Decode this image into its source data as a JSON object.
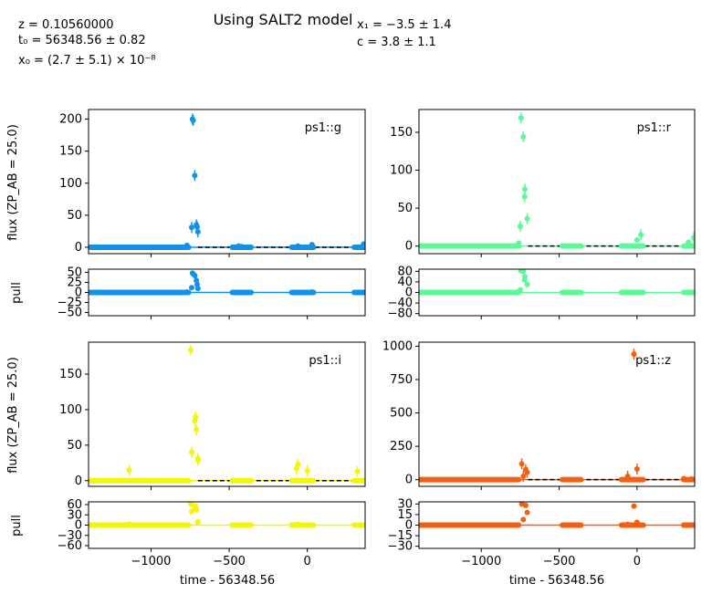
{
  "header": {
    "title": "Using SALT2 model",
    "params": {
      "z": "z = 0.10560000",
      "t0": "t₀ = 56348.56 ± 0.82",
      "x0": "x₀ = (2.7 ± 5.1) × 10⁻⁸",
      "x1": "x₁ = −3.5 ± 1.4",
      "c": "c = 3.8 ± 1.1"
    }
  },
  "labels": {
    "flux_label": "flux (ZP_AB = 25.0)",
    "pull_label": "pull",
    "time_label": "time - 56348.56"
  },
  "chart_data": [
    {
      "type": "scatter",
      "band": "ps1::g",
      "color": "#1192e8",
      "xlim": [
        -1400,
        370
      ],
      "xticks": [
        -1000,
        -500,
        0
      ],
      "ylim": [
        -10,
        215
      ],
      "yticks": [
        0,
        50,
        100,
        150,
        200
      ],
      "pull_ylim": [
        -58,
        58
      ],
      "pull_yticks": [
        50,
        25,
        0,
        -25,
        -50
      ],
      "model_x": [
        -1400,
        -720,
        370
      ],
      "model_y": [
        0,
        0,
        0
      ],
      "baseline_x": [
        [
          -1390,
          -760
        ],
        [
          -480,
          -360
        ],
        [
          -100,
          40
        ],
        [
          300,
          370
        ]
      ],
      "points": [
        {
          "x": -735,
          "y": 200,
          "pull": 48
        },
        {
          "x": -730,
          "y": 198,
          "pull": 46
        },
        {
          "x": -720,
          "y": 112,
          "pull": 42
        },
        {
          "x": -740,
          "y": 31,
          "pull": 12
        },
        {
          "x": -710,
          "y": 35,
          "pull": 30
        },
        {
          "x": -705,
          "y": 32,
          "pull": 20
        },
        {
          "x": -700,
          "y": 24,
          "pull": 10
        },
        {
          "x": -770,
          "y": 3,
          "pull": 1
        },
        {
          "x": -440,
          "y": 2,
          "pull": 0
        },
        {
          "x": -420,
          "y": 1,
          "pull": 0
        },
        {
          "x": -380,
          "y": 0,
          "pull": 0
        },
        {
          "x": -60,
          "y": 2,
          "pull": 0
        },
        {
          "x": 30,
          "y": 4,
          "pull": 1
        },
        {
          "x": 360,
          "y": 5,
          "pull": 0
        }
      ]
    },
    {
      "type": "scatter",
      "band": "ps1::r",
      "color": "#5afa96",
      "xlim": [
        -1400,
        370
      ],
      "xticks": [
        -1000,
        -500,
        0
      ],
      "ylim": [
        -10,
        180
      ],
      "yticks": [
        0,
        50,
        100,
        150
      ],
      "pull_ylim": [
        -88,
        88
      ],
      "pull_yticks": [
        80,
        40,
        0,
        -40,
        -80
      ],
      "model_x": [
        -1400,
        -720,
        370
      ],
      "model_y": [
        0,
        0,
        0
      ],
      "baseline_x": [
        [
          -1390,
          -760
        ],
        [
          -480,
          -360
        ],
        [
          -100,
          40
        ],
        [
          300,
          370
        ]
      ],
      "points": [
        {
          "x": -745,
          "y": 169,
          "pull": 82
        },
        {
          "x": -730,
          "y": 144,
          "pull": 80
        },
        {
          "x": -720,
          "y": 75,
          "pull": 60
        },
        {
          "x": -722,
          "y": 65,
          "pull": 48
        },
        {
          "x": -705,
          "y": 36,
          "pull": 30
        },
        {
          "x": -750,
          "y": 26,
          "pull": 10
        },
        {
          "x": -760,
          "y": 4,
          "pull": 2
        },
        {
          "x": 25,
          "y": 15,
          "pull": 0
        },
        {
          "x": 0,
          "y": 8,
          "pull": 0
        },
        {
          "x": 330,
          "y": 5,
          "pull": 0
        },
        {
          "x": 365,
          "y": 11,
          "pull": 0
        }
      ]
    },
    {
      "type": "scatter",
      "band": "ps1::i",
      "color": "#f5f50c",
      "xlim": [
        -1400,
        370
      ],
      "xticks": [
        -1000,
        -500,
        0
      ],
      "ylim": [
        -8,
        195
      ],
      "yticks": [
        0,
        50,
        100,
        150
      ],
      "pull_ylim": [
        -68,
        68
      ],
      "pull_yticks": [
        60,
        30,
        0,
        -30,
        -60
      ],
      "model_x": [
        -1400,
        -720,
        370
      ],
      "model_y": [
        0,
        0,
        0
      ],
      "baseline_x": [
        [
          -1390,
          -760
        ],
        [
          -480,
          -360
        ],
        [
          -100,
          40
        ],
        [
          300,
          370
        ]
      ],
      "points": [
        {
          "x": -745,
          "y": 184,
          "pull": 62
        },
        {
          "x": -715,
          "y": 90,
          "pull": 56
        },
        {
          "x": -720,
          "y": 84,
          "pull": 50
        },
        {
          "x": -710,
          "y": 72,
          "pull": 45
        },
        {
          "x": -740,
          "y": 40,
          "pull": 40
        },
        {
          "x": -700,
          "y": 31,
          "pull": 10
        },
        {
          "x": -700,
          "y": 29,
          "pull": 8
        },
        {
          "x": -1140,
          "y": 15,
          "pull": 3
        },
        {
          "x": -60,
          "y": 23,
          "pull": 2
        },
        {
          "x": -70,
          "y": 17,
          "pull": 1
        },
        {
          "x": 0,
          "y": 14,
          "pull": 1
        },
        {
          "x": 320,
          "y": 13,
          "pull": 0
        }
      ]
    },
    {
      "type": "scatter",
      "band": "ps1::z",
      "color": "#f55f10",
      "xlim": [
        -1400,
        370
      ],
      "xticks": [
        -1000,
        -500,
        0
      ],
      "ylim": [
        -50,
        1030
      ],
      "yticks": [
        0,
        250,
        500,
        750,
        1000
      ],
      "pull_ylim": [
        -33,
        33
      ],
      "pull_yticks": [
        30,
        15,
        0,
        -15,
        -30
      ],
      "model_x": [
        -1400,
        -720,
        370
      ],
      "model_y": [
        0,
        0,
        0
      ],
      "baseline_x": [
        [
          -1390,
          -760
        ],
        [
          -480,
          -360
        ],
        [
          -100,
          40
        ],
        [
          300,
          370
        ]
      ],
      "points": [
        {
          "x": -20,
          "y": 940,
          "pull": 27
        },
        {
          "x": -740,
          "y": 118,
          "pull": 30
        },
        {
          "x": -715,
          "y": 75,
          "pull": 28
        },
        {
          "x": -705,
          "y": 55,
          "pull": 18
        },
        {
          "x": -730,
          "y": 25,
          "pull": 8
        },
        {
          "x": 0,
          "y": 80,
          "pull": 4
        },
        {
          "x": -60,
          "y": 25,
          "pull": 1
        },
        {
          "x": 300,
          "y": 8,
          "pull": 0
        },
        {
          "x": 350,
          "y": 5,
          "pull": 0
        }
      ]
    }
  ]
}
